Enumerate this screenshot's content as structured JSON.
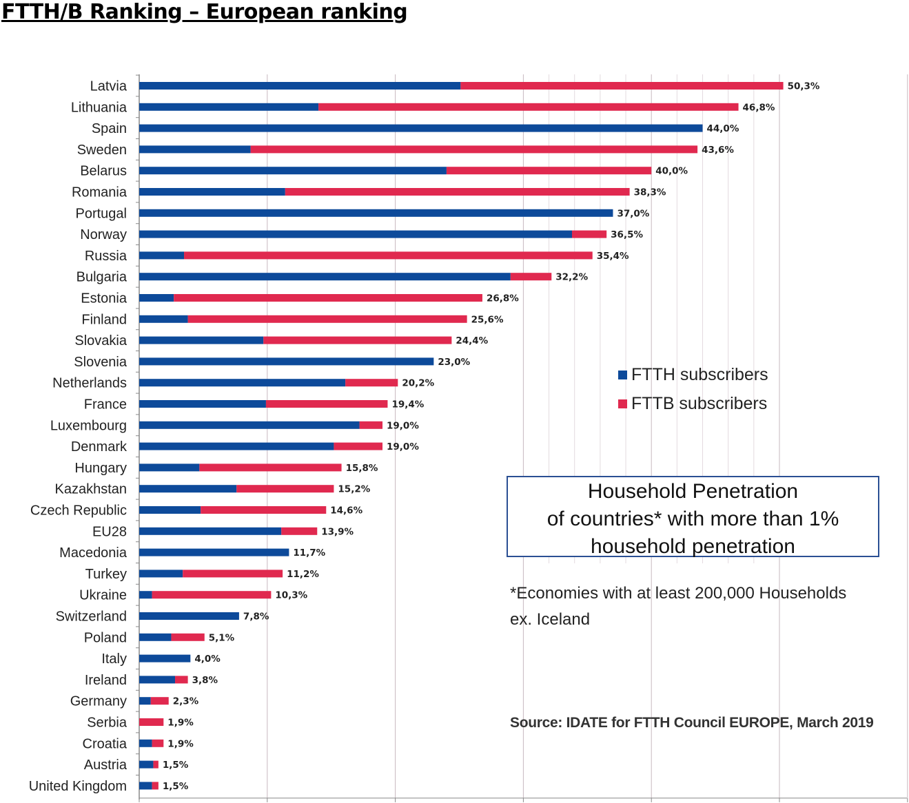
{
  "title": "FTTH/B Ranking – European ranking",
  "legend": {
    "ftth": "FTTH subscribers",
    "fttb": "FTTB subscribers"
  },
  "panel": {
    "line1": "Household Penetration",
    "line2": "of countries* with more than 1%",
    "line3": "household penetration"
  },
  "footnote": {
    "line1": "*Economies with at least 200,000 Households",
    "line2": "ex. Iceland"
  },
  "source": "Source: IDATE for FTTH Council EUROPE, March 2019",
  "colors": {
    "ftth": "#0d4a9a",
    "fttb": "#e0294f",
    "grid": "#c7b8bf",
    "axis": "#888888"
  },
  "chart_data": {
    "type": "bar",
    "orientation": "horizontal",
    "stacked": true,
    "xlim": [
      0,
      60
    ],
    "grid": true,
    "legend_position": "right",
    "categories": [
      "Latvia",
      "Lithuania",
      "Spain",
      "Sweden",
      "Belarus",
      "Romania",
      "Portugal",
      "Norway",
      "Russia",
      "Bulgaria",
      "Estonia",
      "Finland",
      "Slovakia",
      "Slovenia",
      "Netherlands",
      "France",
      "Luxembourg",
      "Denmark",
      "Hungary",
      "Kazakhstan",
      "Czech Republic",
      "EU28",
      "Macedonia",
      "Turkey",
      "Ukraine",
      "Switzerland",
      "Poland",
      "Italy",
      "Ireland",
      "Germany",
      "Serbia",
      "Croatia",
      "Austria",
      "United Kingdom"
    ],
    "series": [
      {
        "name": "FTTH subscribers",
        "values": [
          25.1,
          14.0,
          44.0,
          8.7,
          24.0,
          11.4,
          37.0,
          33.8,
          3.5,
          29.0,
          2.7,
          3.8,
          9.7,
          23.0,
          16.1,
          9.9,
          17.2,
          15.2,
          4.7,
          7.6,
          4.8,
          11.1,
          11.7,
          3.4,
          1.0,
          7.8,
          2.5,
          4.0,
          2.8,
          0.9,
          0.0,
          1.0,
          1.1,
          1.0
        ]
      },
      {
        "name": "FTTB subscribers",
        "values": [
          25.2,
          32.8,
          0.0,
          34.9,
          16.0,
          26.9,
          0.0,
          2.7,
          31.9,
          3.2,
          24.1,
          21.8,
          14.7,
          0.0,
          4.1,
          9.5,
          1.8,
          3.8,
          11.1,
          7.6,
          9.8,
          2.8,
          0.0,
          7.8,
          9.3,
          0.0,
          2.6,
          0.0,
          1.0,
          1.4,
          1.9,
          0.9,
          0.4,
          0.5
        ]
      }
    ],
    "total_labels": [
      "50,3%",
      "46,8%",
      "44,0%",
      "43,6%",
      "40,0%",
      "38,3%",
      "37,0%",
      "36,5%",
      "35,4%",
      "32,2%",
      "26,8%",
      "25,6%",
      "24,4%",
      "23,0%",
      "20,2%",
      "19,4%",
      "19,0%",
      "19,0%",
      "15,8%",
      "15,2%",
      "14,6%",
      "13,9%",
      "11,7%",
      "11,2%",
      "10,3%",
      "7,8%",
      "5,1%",
      "4,0%",
      "3,8%",
      "2,3%",
      "1,9%",
      "1,9%",
      "1,5%",
      "1,5%"
    ]
  }
}
